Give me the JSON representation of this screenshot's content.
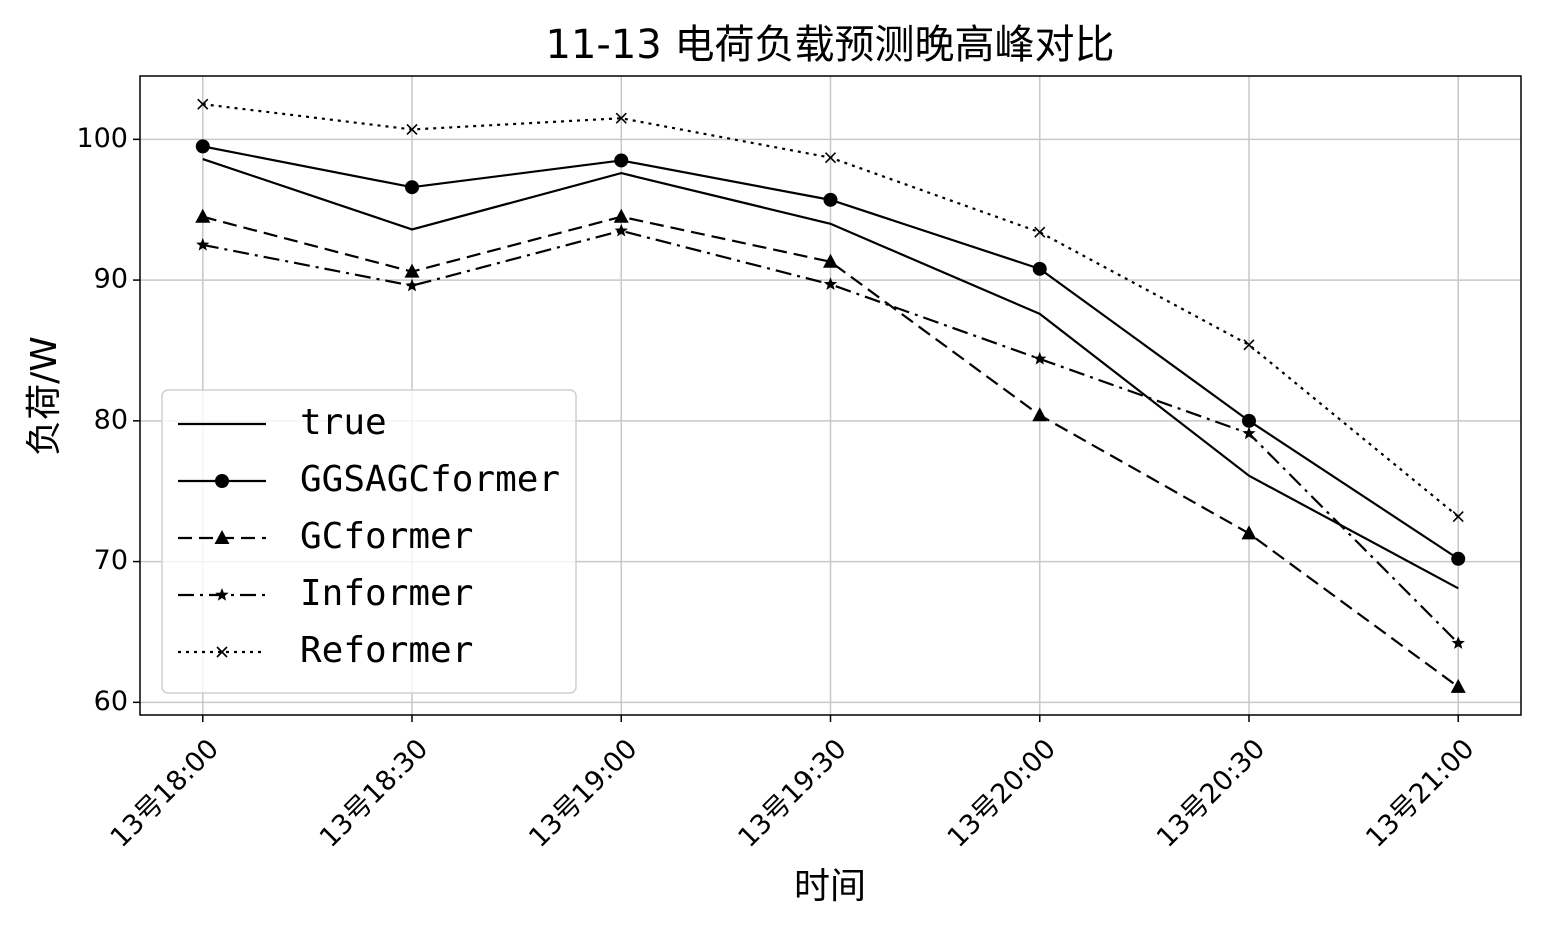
{
  "chart_data": {
    "type": "line",
    "title": "11-13 电荷负载预测晚高峰对比",
    "x_label": "时间",
    "y_label": "负荷/W",
    "categories": [
      "13号18:00",
      "13号18:30",
      "13号19:00",
      "13号19:30",
      "13号20:00",
      "13号20:30",
      "13号21:00"
    ],
    "series": [
      {
        "name": "true",
        "color": "#000000",
        "dash": "solid",
        "marker": "none",
        "values": [
          98.6,
          93.6,
          97.6,
          94.0,
          87.6,
          76.1,
          68.1
        ]
      },
      {
        "name": "GGSAGCformer",
        "color": "#000000",
        "dash": "solid",
        "marker": "circle",
        "values": [
          99.5,
          96.6,
          98.5,
          95.7,
          90.8,
          80.0,
          70.2
        ]
      },
      {
        "name": "GCformer",
        "color": "#000000",
        "dash": "dashed",
        "marker": "triangle",
        "values": [
          94.5,
          90.6,
          94.5,
          91.3,
          80.4,
          72.0,
          61.1
        ]
      },
      {
        "name": "Informer",
        "color": "#000000",
        "dash": "dashdot",
        "marker": "star",
        "values": [
          92.5,
          89.6,
          93.5,
          89.7,
          84.4,
          79.1,
          64.2
        ]
      },
      {
        "name": "Reformer",
        "color": "#000000",
        "dash": "dotted",
        "marker": "x",
        "values": [
          102.5,
          100.7,
          101.5,
          98.7,
          93.4,
          85.4,
          73.2
        ]
      }
    ],
    "ylim": [
      59.1,
      104.5
    ],
    "yticks": [
      60,
      70,
      80,
      90,
      100
    ],
    "grid": true,
    "legend": "lower left"
  }
}
